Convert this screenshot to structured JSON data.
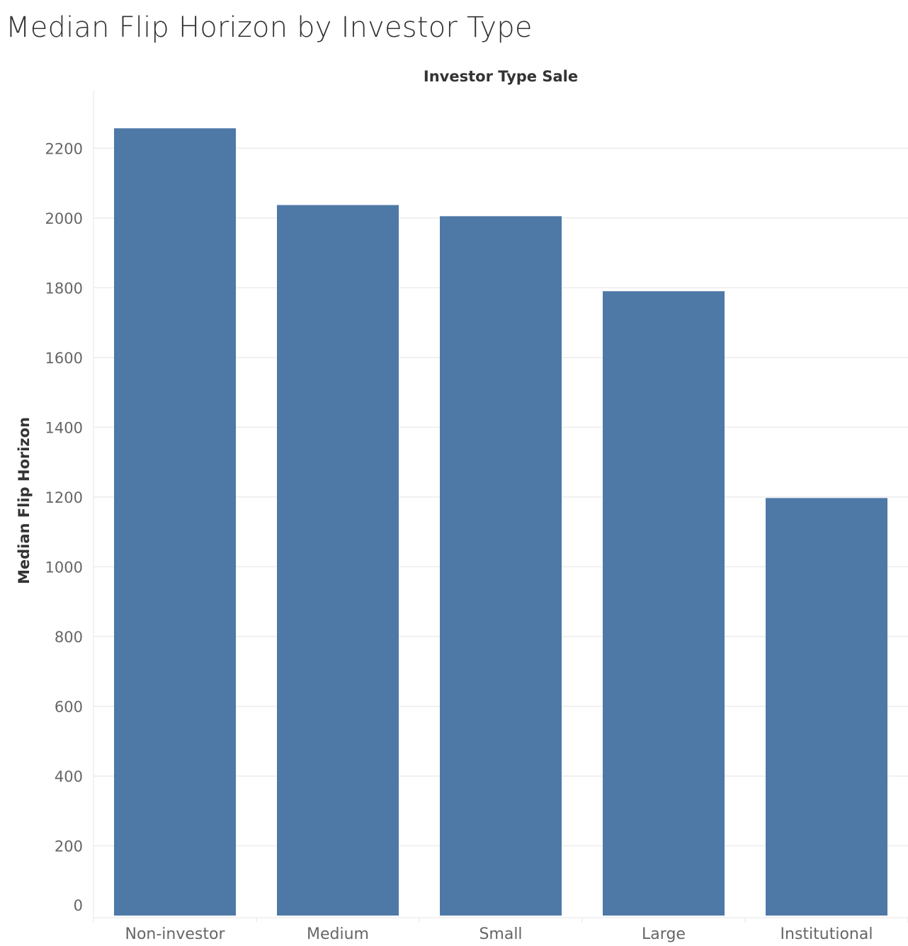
{
  "chart_data": {
    "type": "bar",
    "title": "Median Flip Horizon by Investor Type",
    "column_header": "Investor Type Sale",
    "xlabel": "",
    "ylabel": "Median Flip Horizon",
    "categories": [
      "Non-investor",
      "Medium",
      "Small",
      "Large",
      "Institutional"
    ],
    "values": [
      2257,
      2037,
      2005,
      1790,
      1197
    ],
    "ylim": [
      0,
      2400
    ],
    "yticks": [
      0,
      200,
      400,
      600,
      800,
      1000,
      1200,
      1400,
      1600,
      1800,
      2000,
      2200
    ],
    "grid": true,
    "bar_color": "#4e79a7"
  }
}
